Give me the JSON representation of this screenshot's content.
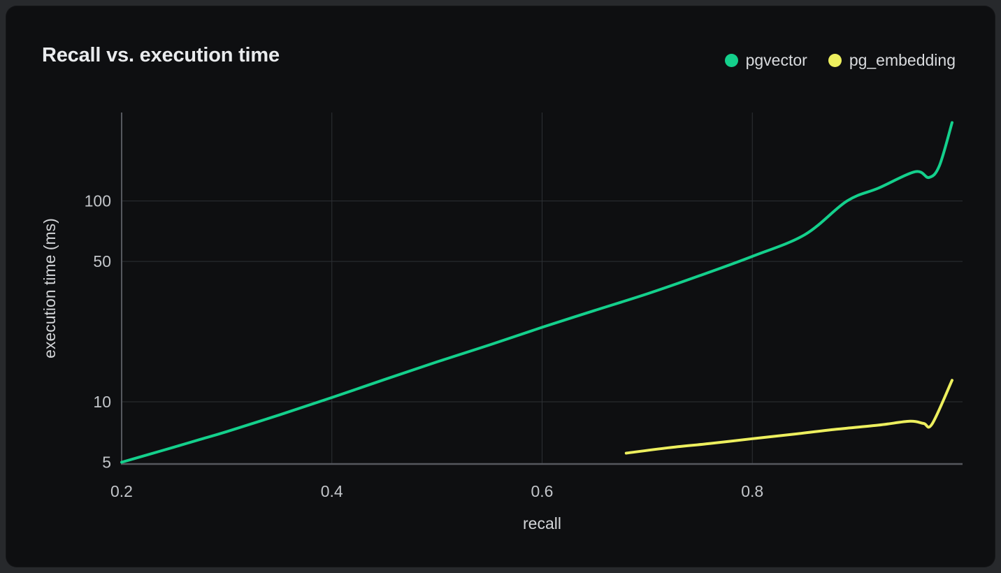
{
  "chart_data": {
    "type": "line",
    "title": "Recall vs. execution time",
    "xlabel": "recall",
    "ylabel": "execution time (ms)",
    "x_scale": "linear",
    "y_scale": "log",
    "xlim": [
      0.2,
      1.0
    ],
    "ylim": [
      4.9,
      276
    ],
    "x_ticks": [
      0.2,
      0.4,
      0.6,
      0.8
    ],
    "y_ticks": [
      5,
      10,
      50,
      100
    ],
    "x_gridlines": [
      0.4,
      0.6,
      0.8
    ],
    "y_gridlines": [
      10,
      50,
      100
    ],
    "grid": true,
    "legend_position": "top-right",
    "series": [
      {
        "name": "pgvector",
        "color": "#14d08c",
        "points": [
          [
            0.2,
            5.0
          ],
          [
            0.225,
            5.45
          ],
          [
            0.25,
            5.95
          ],
          [
            0.275,
            6.5
          ],
          [
            0.3,
            7.1
          ],
          [
            0.35,
            8.6
          ],
          [
            0.4,
            10.5
          ],
          [
            0.45,
            12.9
          ],
          [
            0.5,
            15.8
          ],
          [
            0.55,
            19.2
          ],
          [
            0.6,
            23.5
          ],
          [
            0.65,
            28.5
          ],
          [
            0.7,
            34.5
          ],
          [
            0.75,
            42.5
          ],
          [
            0.8,
            53
          ],
          [
            0.85,
            68
          ],
          [
            0.89,
            100
          ],
          [
            0.92,
            116
          ],
          [
            0.955,
            140
          ],
          [
            0.968,
            131
          ],
          [
            0.978,
            150
          ],
          [
            0.99,
            246
          ]
        ]
      },
      {
        "name": "pg_embedding",
        "color": "#edef5e",
        "points": [
          [
            0.68,
            5.55
          ],
          [
            0.72,
            5.9
          ],
          [
            0.76,
            6.2
          ],
          [
            0.8,
            6.55
          ],
          [
            0.84,
            6.9
          ],
          [
            0.88,
            7.3
          ],
          [
            0.92,
            7.65
          ],
          [
            0.95,
            8.0
          ],
          [
            0.963,
            7.8
          ],
          [
            0.971,
            7.75
          ],
          [
            0.99,
            12.8
          ]
        ]
      }
    ]
  },
  "colors": {
    "page_background": "#27292c",
    "card_background": "#0e0f11",
    "grid_line": "#2d3034",
    "axis_line": "#55585e",
    "tick_label": "#c2c5c9",
    "axis_title": "#d3d5d8",
    "title_text": "#e9ebed"
  }
}
